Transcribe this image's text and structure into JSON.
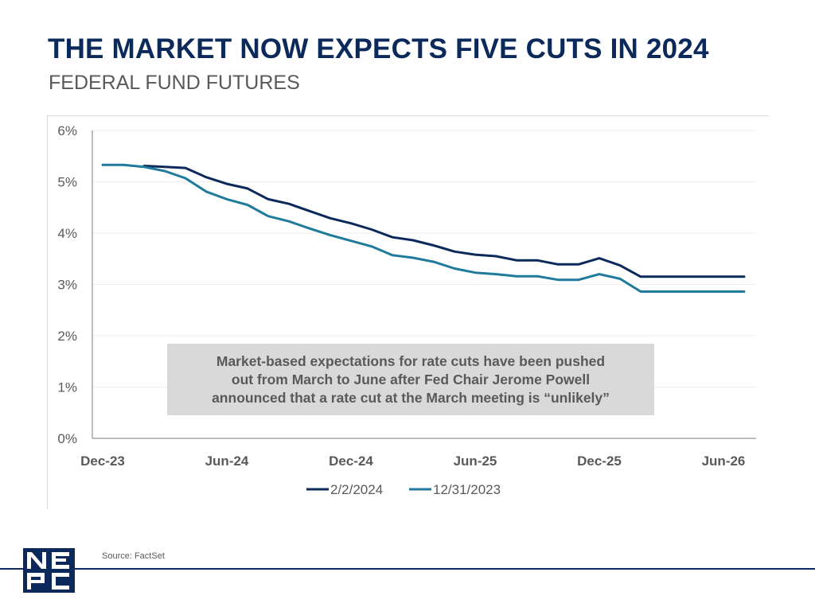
{
  "header": {
    "title": "THE MARKET NOW EXPECTS FIVE CUTS IN 2024",
    "subtitle": "FEDERAL FUND FUTURES"
  },
  "annotation": {
    "text": "Market-based expectations for rate cuts have been pushed\nout from March to June after Fed Chair Jerome Powell\nannounced that a rate cut at the March meeting is “unlikely”"
  },
  "footer": {
    "source": "Source: FactSet",
    "logo_text": "NEPC"
  },
  "colors": {
    "title": "#0b2a5b",
    "series_2_2_2024": "#0b2a5b",
    "series_12_31_2023": "#1f7a9c",
    "annotation_bg": "#d9d9d9",
    "text_gray": "#595959"
  },
  "chart_data": {
    "type": "line",
    "title": "THE MARKET NOW EXPECTS FIVE CUTS IN 2024",
    "subtitle": "FEDERAL FUND FUTURES",
    "xlabel": "",
    "ylabel": "",
    "x_unit": "months since Dec-23",
    "x_ticks": [
      {
        "x": 0,
        "label": "Dec-23"
      },
      {
        "x": 6,
        "label": "Jun-24"
      },
      {
        "x": 12,
        "label": "Dec-24"
      },
      {
        "x": 18,
        "label": "Jun-25"
      },
      {
        "x": 24,
        "label": "Dec-25"
      },
      {
        "x": 30,
        "label": "Jun-26"
      }
    ],
    "y_ticks": [
      "0%",
      "1%",
      "2%",
      "3%",
      "4%",
      "5%",
      "6%"
    ],
    "ylim": [
      0,
      6
    ],
    "xlim": [
      -0.5,
      31.5
    ],
    "grid": "horizontal",
    "legend_position": "bottom-center",
    "series": [
      {
        "name": "2/2/2024",
        "color": "#0b2a5b",
        "x": [
          2,
          3,
          4,
          5,
          6,
          7,
          8,
          9,
          10,
          11,
          12,
          13,
          14,
          15,
          16,
          17,
          18,
          19,
          20,
          21,
          22,
          23,
          24,
          25,
          26,
          27,
          28,
          29,
          30,
          31
        ],
        "values": [
          5.31,
          5.29,
          5.27,
          5.09,
          4.96,
          4.87,
          4.66,
          4.57,
          4.43,
          4.29,
          4.19,
          4.07,
          3.92,
          3.86,
          3.76,
          3.64,
          3.58,
          3.55,
          3.47,
          3.47,
          3.39,
          3.39,
          3.51,
          3.37,
          3.15,
          3.15,
          3.15,
          3.15,
          3.15,
          3.15
        ]
      },
      {
        "name": "12/31/2023",
        "color": "#1f7a9c",
        "x": [
          0,
          1,
          2,
          3,
          4,
          5,
          6,
          7,
          8,
          9,
          10,
          11,
          12,
          13,
          14,
          15,
          16,
          17,
          18,
          19,
          20,
          21,
          22,
          23,
          24,
          25,
          26,
          27,
          28,
          29,
          30,
          31
        ],
        "values": [
          5.33,
          5.33,
          5.29,
          5.21,
          5.07,
          4.81,
          4.66,
          4.55,
          4.33,
          4.23,
          4.09,
          3.96,
          3.85,
          3.74,
          3.57,
          3.52,
          3.44,
          3.31,
          3.23,
          3.2,
          3.16,
          3.16,
          3.09,
          3.09,
          3.2,
          3.11,
          2.86,
          2.86,
          2.86,
          2.86,
          2.86,
          2.86
        ]
      }
    ]
  }
}
